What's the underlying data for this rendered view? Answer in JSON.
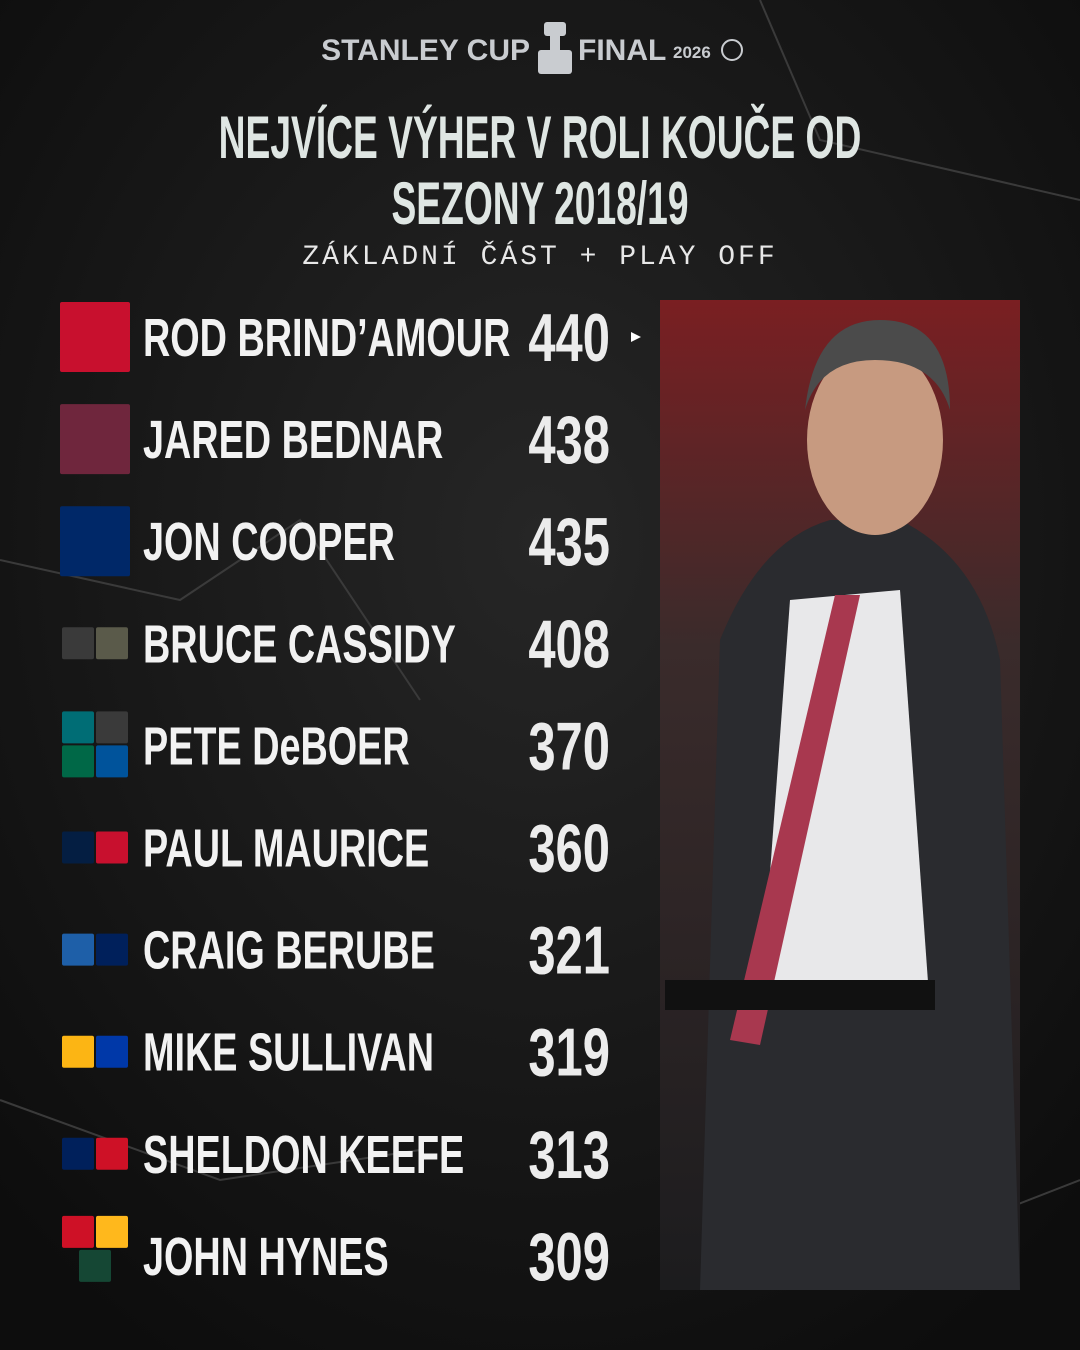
{
  "header": {
    "brand": "STANLEY CUP",
    "event": "FINAL",
    "year": "2026"
  },
  "title_lines": [
    "NEJVÍCE VÝHER V ROLI KOUČE OD",
    "SEZONY 2018/19"
  ],
  "subtitle": "ZÁKLADNÍ ČÁST + PLAY OFF",
  "rows": [
    {
      "name": "ROD BRIND’AMOUR",
      "wins": 440
    },
    {
      "name": "JARED BEDNAR",
      "wins": 438
    },
    {
      "name": "JON COOPER",
      "wins": 435
    },
    {
      "name": "BRUCE CASSIDY",
      "wins": 408
    },
    {
      "name": "PETE DeBOER",
      "wins": 370
    },
    {
      "name": "PAUL MAURICE",
      "wins": 360
    },
    {
      "name": "CRAIG BERUBE",
      "wins": 321
    },
    {
      "name": "MIKE SULLIVAN",
      "wins": 319
    },
    {
      "name": "SHELDON KEEFE",
      "wins": 313
    },
    {
      "name": "JOHN HYNES",
      "wins": 309
    }
  ]
}
